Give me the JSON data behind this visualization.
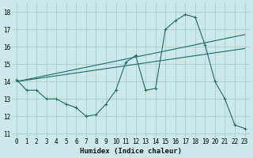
{
  "xlabel": "Humidex (Indice chaleur)",
  "bg_color": "#cce8e8",
  "grid_color": "#aacccc",
  "line_color": "#1a6b6b",
  "xlim": [
    -0.5,
    23.5
  ],
  "ylim": [
    10.8,
    18.5
  ],
  "yticks": [
    11,
    12,
    13,
    14,
    15,
    16,
    17,
    18
  ],
  "xticks": [
    0,
    1,
    2,
    3,
    4,
    5,
    6,
    7,
    8,
    9,
    10,
    11,
    12,
    13,
    14,
    15,
    16,
    17,
    18,
    19,
    20,
    21,
    22,
    23
  ],
  "line1_x": [
    0,
    1,
    2,
    3,
    4,
    5,
    6,
    7,
    8,
    9,
    10,
    11,
    12,
    13,
    14,
    15,
    16,
    17,
    18,
    19,
    20,
    21,
    22,
    23
  ],
  "line1_y": [
    14.1,
    13.5,
    13.5,
    13.0,
    13.0,
    12.7,
    12.5,
    12.0,
    12.1,
    12.7,
    13.5,
    15.1,
    15.5,
    13.5,
    13.6,
    17.0,
    17.5,
    17.85,
    17.7,
    16.1,
    14.0,
    13.0,
    11.5,
    11.3
  ],
  "line2_x": [
    0,
    23
  ],
  "line2_y": [
    14.0,
    16.7
  ],
  "line3_x": [
    0,
    23
  ],
  "line3_y": [
    14.0,
    15.9
  ],
  "tick_fontsize": 5.5,
  "xlabel_fontsize": 6.5
}
